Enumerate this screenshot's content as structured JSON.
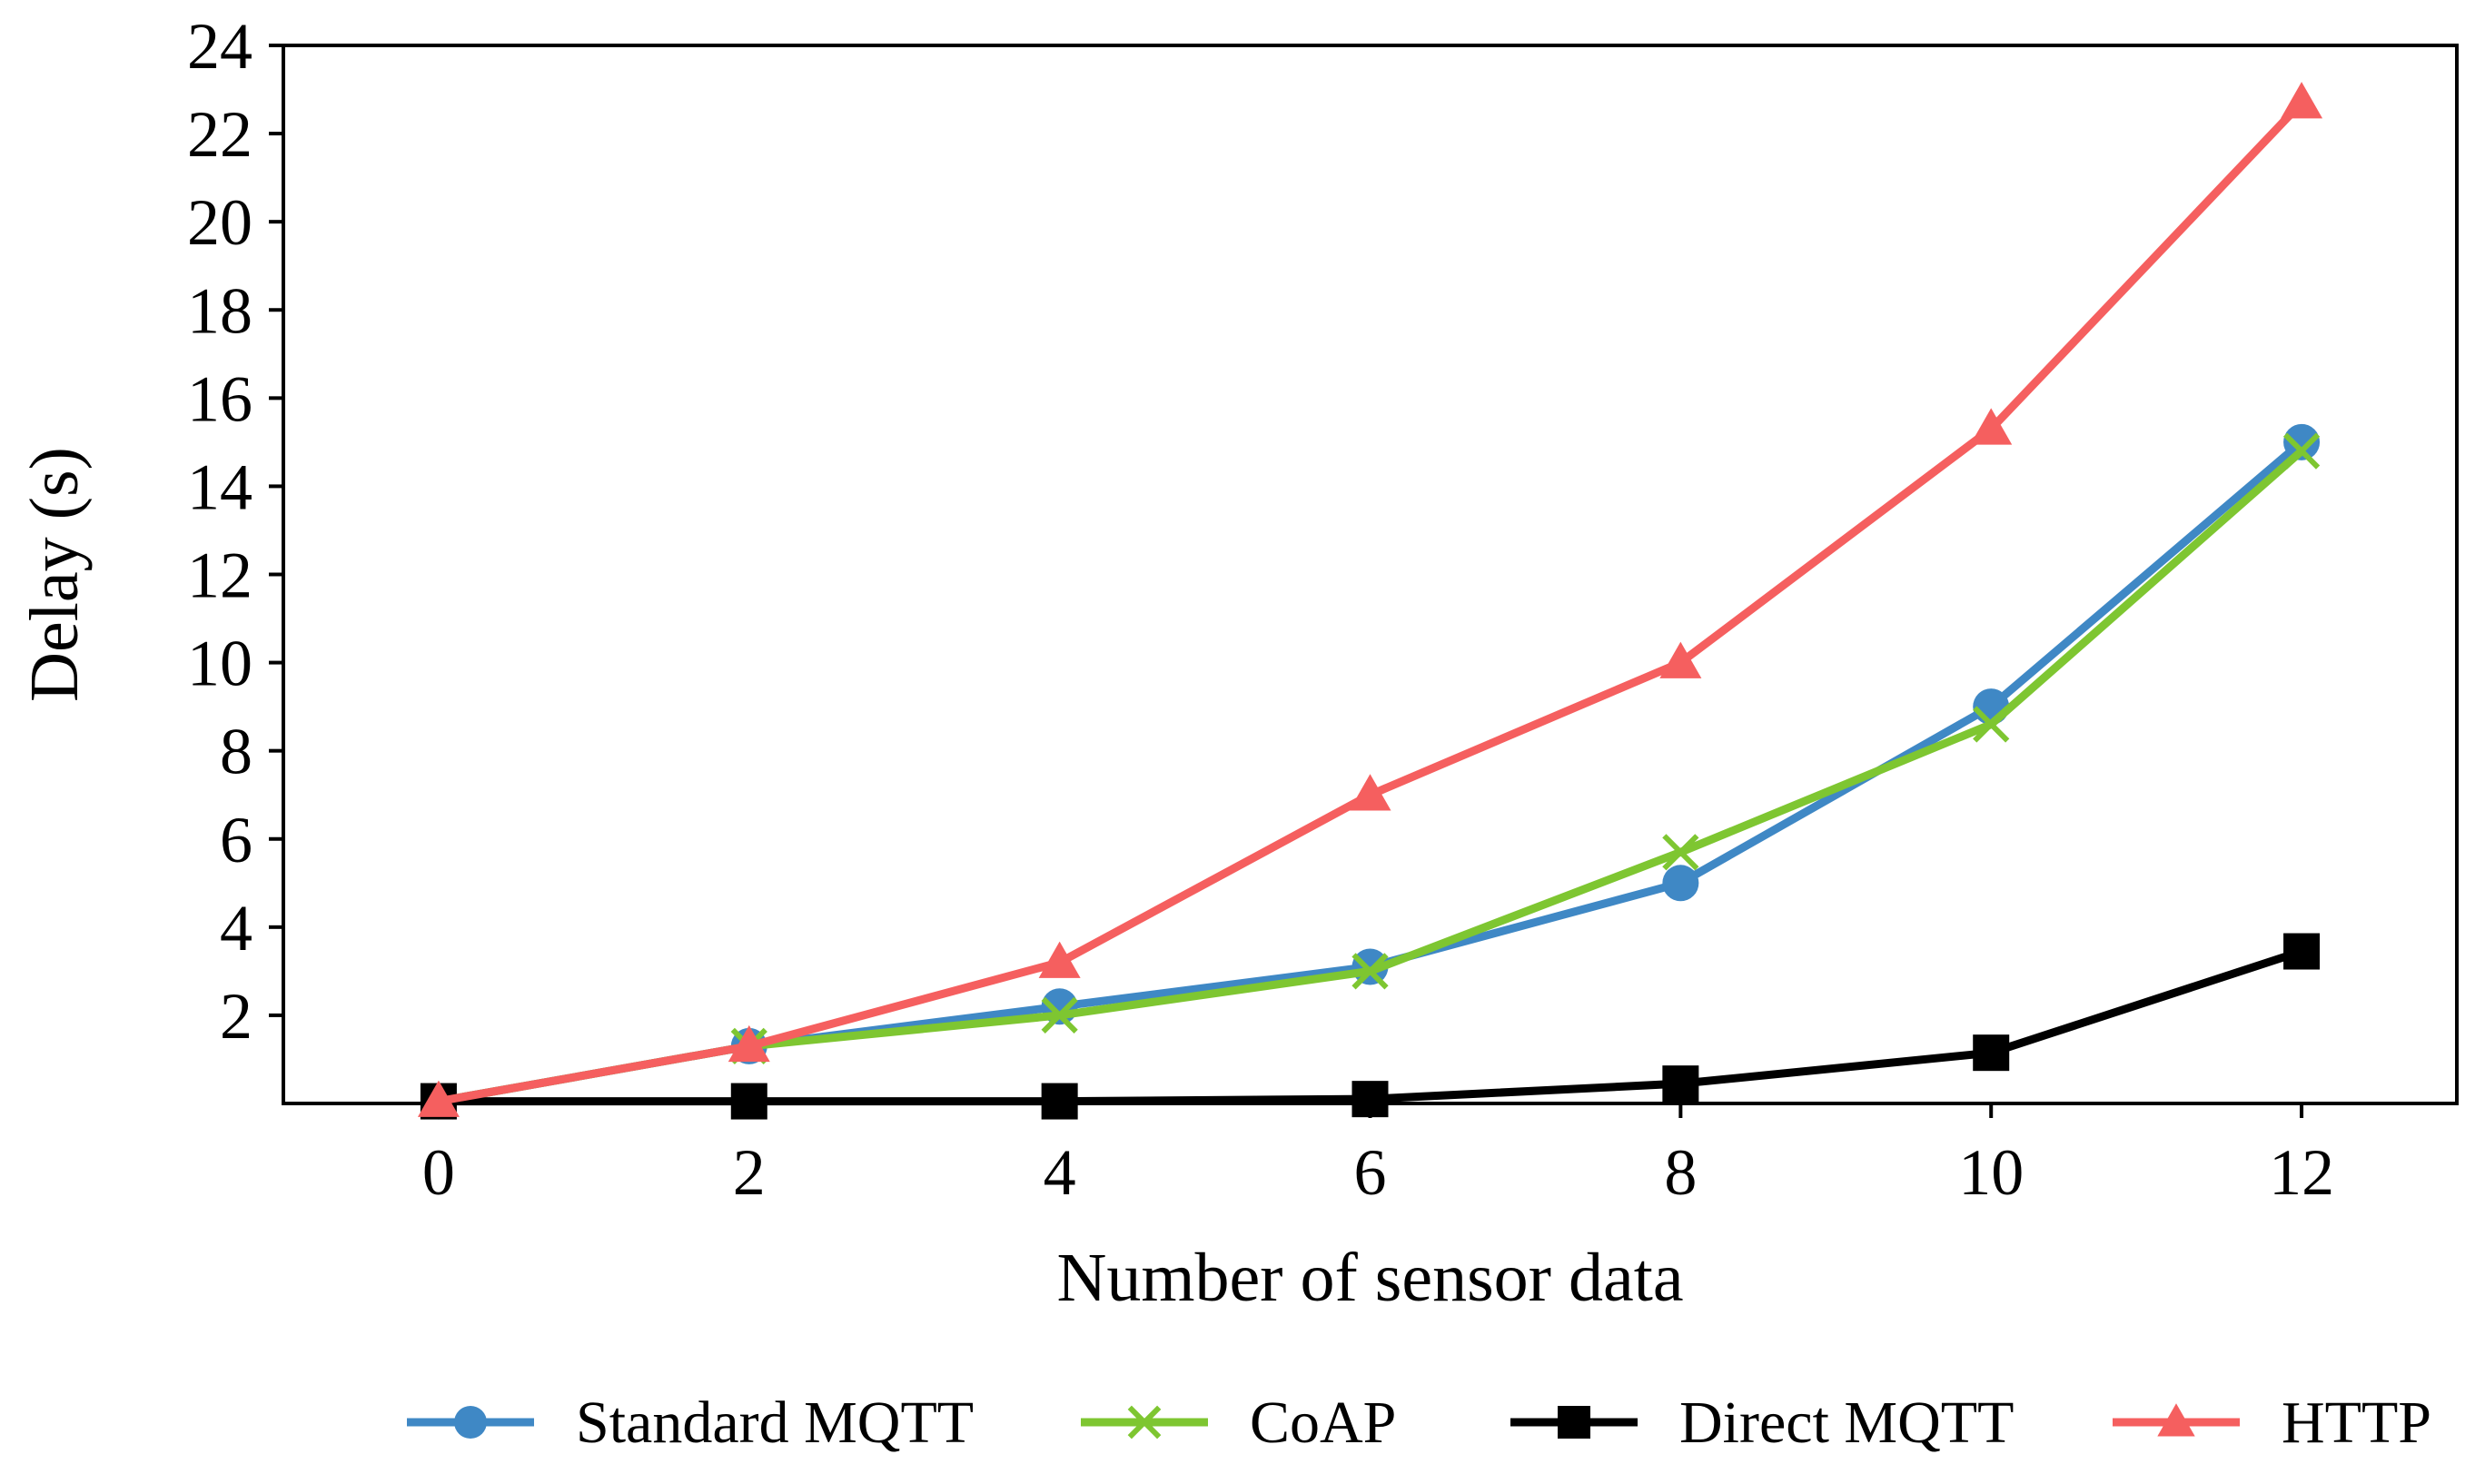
{
  "chart_data": {
    "type": "line",
    "title": "",
    "xlabel": "Number of sensor data",
    "ylabel": "Delay (s)",
    "xlim": [
      -1,
      13
    ],
    "ylim": [
      0,
      24
    ],
    "xticks": [
      0,
      2,
      4,
      6,
      8,
      10,
      12
    ],
    "yticks": [
      2,
      4,
      6,
      8,
      10,
      12,
      14,
      16,
      18,
      20,
      22,
      24
    ],
    "x": [
      0,
      2,
      4,
      6,
      8,
      10,
      12
    ],
    "grid": false,
    "legend_position": "bottom",
    "series": [
      {
        "name": "Standard MQTT",
        "color": "#3f88c5",
        "marker": "circle",
        "values": [
          0.05,
          1.3,
          2.2,
          3.1,
          5.0,
          9.0,
          15.0
        ]
      },
      {
        "name": "CoAP",
        "color": "#7ec631",
        "marker": "x",
        "values": [
          0.05,
          1.3,
          2.0,
          3.0,
          5.7,
          8.6,
          14.8
        ]
      },
      {
        "name": "Direct MQTT",
        "color": "#000000",
        "marker": "square",
        "values": [
          0.05,
          0.05,
          0.05,
          0.1,
          0.45,
          1.15,
          3.45
        ]
      },
      {
        "name": "HTTP",
        "color": "#f55f5f",
        "marker": "triangle",
        "values": [
          0.05,
          1.3,
          3.2,
          7.0,
          10.0,
          15.3,
          22.7
        ]
      }
    ]
  }
}
